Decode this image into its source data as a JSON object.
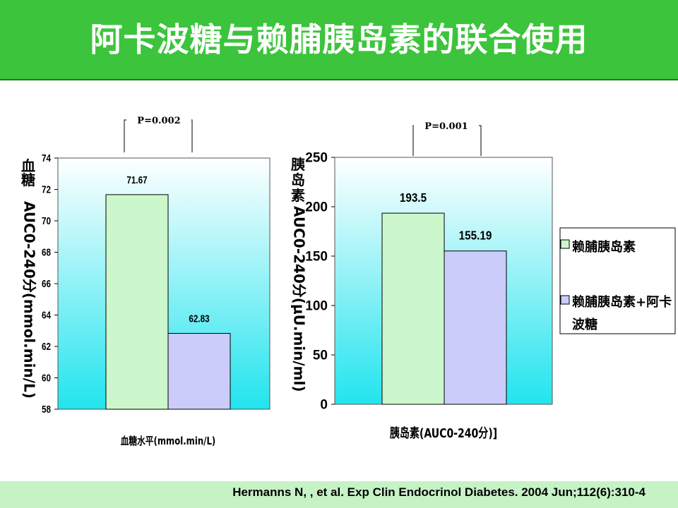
{
  "title": "阿卡波糖与赖脯胰岛素的联合使用",
  "footer": "Hermanns N, , et al. Exp Clin Endocrinol Diabetes. 2004 Jun;112(6):310-4",
  "colors": {
    "title_bg": "#3cc43c",
    "bar_series_1": "#ccf7cc",
    "bar_series_2": "#ccccfa",
    "plot_bg_top": "#ffffff",
    "plot_bg_bottom": "#22e4ee"
  },
  "legend": {
    "items": [
      "赖脯胰岛素",
      "赖脯胰岛素+阿卡波糖"
    ]
  },
  "chart_data": [
    {
      "type": "bar",
      "title": "",
      "xlabel": "血糖水平(mmol.min/L)",
      "ylabel": "血糖AUC0-240分(mmol.min/L)",
      "ylabel_cjk": "血糖",
      "ylabel_rest": "AUC0-240分(mmol.min/L)",
      "ylim": [
        58,
        74
      ],
      "yticks": [
        "74",
        "72",
        "70",
        "68",
        "66",
        "64",
        "62",
        "60",
        "58"
      ],
      "series": [
        {
          "values": [
            71.67
          ],
          "labels": [
            "71.67"
          ]
        },
        {
          "values": [
            62.83
          ],
          "labels": [
            "62.83"
          ]
        }
      ],
      "p_value": "P=0.002"
    },
    {
      "type": "bar",
      "title": "",
      "xlabel": "胰岛素(AUC0-240分)]",
      "ylabel": "胰岛素AUC0-240分(μU.min/ml)",
      "ylabel_cjk": "胰岛素",
      "ylabel_rest": "AUC0-240分(μU.min/ml)",
      "ylim": [
        0,
        250
      ],
      "yticks": [
        "250",
        "200",
        "150",
        "100",
        "50",
        "0"
      ],
      "series": [
        {
          "values": [
            193.5
          ],
          "labels": [
            "193.5"
          ]
        },
        {
          "values": [
            155.19
          ],
          "labels": [
            "155.19"
          ]
        }
      ],
      "p_value": "P=0.001"
    }
  ]
}
